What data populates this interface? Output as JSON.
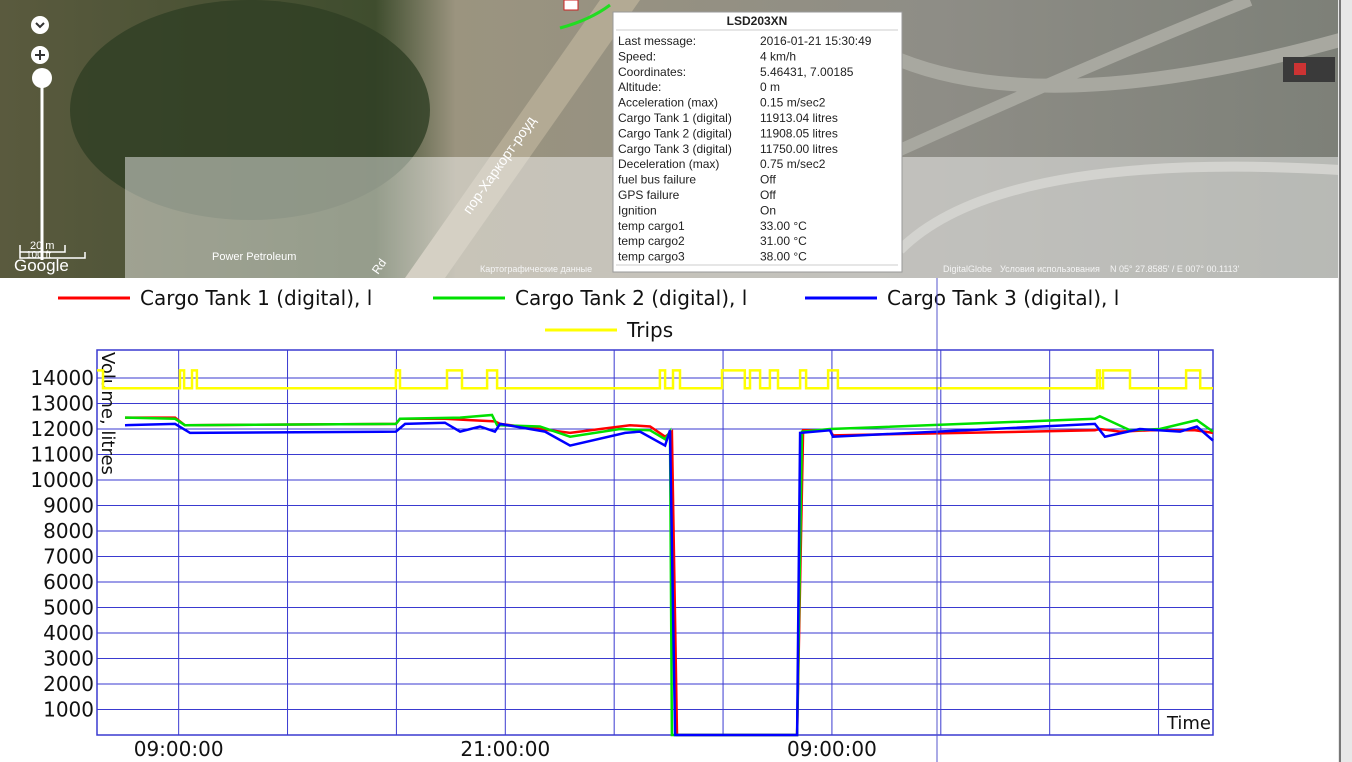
{
  "map": {
    "road": "пор-Харкорт-роуд",
    "poi": "Power Petroleum",
    "road2": "Rd",
    "scale_m": "20 m",
    "scale_ft": "100 ft",
    "logo": "Google",
    "attribution": "Картографические данные",
    "provider": "DigitalGlobe",
    "terms": "Условия использования",
    "coords": "N 05° 27.8585' / E 007° 00.1113'"
  },
  "popup": {
    "title": "LSD203XN",
    "rows": [
      [
        "Last message:",
        "2016-01-21 15:30:49"
      ],
      [
        "Speed:",
        "4 km/h"
      ],
      [
        "Coordinates:",
        "5.46431, 7.00185"
      ],
      [
        "Altitude:",
        "0 m"
      ],
      [
        "Acceleration (max)",
        "0.15 m/sec2"
      ],
      [
        "Cargo Tank 1 (digital)",
        "11913.04 litres"
      ],
      [
        "Cargo Tank 2 (digital)",
        "11908.05 litres"
      ],
      [
        "Cargo Tank 3 (digital)",
        "11750.00 litres"
      ],
      [
        "Deceleration (max)",
        "0.75 m/sec2"
      ],
      [
        "fuel bus failure",
        "Off"
      ],
      [
        "GPS failure",
        "Off"
      ],
      [
        "Ignition",
        "On"
      ],
      [
        "temp cargo1",
        "33.00 °C"
      ],
      [
        "temp cargo2",
        "31.00 °C"
      ],
      [
        "temp cargo3",
        "38.00 °C"
      ]
    ]
  },
  "chart_data": {
    "type": "line",
    "xlabel": "Time",
    "ylabel": "Volume, litres",
    "grid": true,
    "xlim": [
      6,
      47
    ],
    "xticks": [
      {
        "value": 9,
        "label": "09:00:00"
      },
      {
        "value": 21,
        "label": "21:00:00"
      },
      {
        "value": 33,
        "label": "09:00:00"
      }
    ],
    "xminorticks": [
      13,
      17,
      25,
      29,
      37,
      41,
      45
    ],
    "ylim": [
      0,
      15100
    ],
    "yticks": [
      1000,
      2000,
      3000,
      4000,
      5000,
      6000,
      7000,
      8000,
      9000,
      10000,
      11000,
      12000,
      13000,
      14000
    ],
    "series": [
      {
        "name": "Cargo Tank 1 (digital), l",
        "color": "#ff0000",
        "x": [
          7.03,
          8.87,
          9.23,
          16.98,
          17.13,
          18.78,
          19.7,
          20.62,
          20.81,
          23.38,
          25.58,
          26.32,
          26.87,
          27.12,
          27.31,
          31.72,
          31.94,
          32.93,
          33.04,
          42.66,
          42.84,
          43.58,
          44.68,
          46.34,
          47
        ],
        "values": [
          12450,
          12450,
          12150,
          12200,
          12400,
          12400,
          12350,
          12300,
          12200,
          11850,
          12150,
          12100,
          11700,
          11900,
          0,
          0,
          11950,
          11950,
          11750,
          11950,
          12000,
          11900,
          11950,
          11950,
          11850
        ]
      },
      {
        "name": "Cargo Tank 2 (digital), l",
        "color": "#00e000",
        "x": [
          7.03,
          8.87,
          9.23,
          16.98,
          17.13,
          19.34,
          20.51,
          20.7,
          22.27,
          23.38,
          25.21,
          26.32,
          26.87,
          27.05,
          27.12,
          31.72,
          31.9,
          32.93,
          42.66,
          42.84,
          43.95,
          45.05,
          46.41,
          47
        ],
        "values": [
          12450,
          12400,
          12150,
          12200,
          12400,
          12450,
          12550,
          12150,
          12100,
          11700,
          12000,
          11950,
          11600,
          11900,
          0,
          0,
          11900,
          12000,
          12400,
          12500,
          11950,
          12000,
          12350,
          11900
        ]
      },
      {
        "name": "Cargo Tank 3 (digital), l",
        "color": "#0000ff",
        "x": [
          7.03,
          8.87,
          9.42,
          16.98,
          17.32,
          18.78,
          19.34,
          20.07,
          20.62,
          20.81,
          22.46,
          23.38,
          25.4,
          25.95,
          26.87,
          27.05,
          27.24,
          31.72,
          31.83,
          32.93,
          33.04,
          42.66,
          43.03,
          44.31,
          45.79,
          46.41,
          47
        ],
        "values": [
          12150,
          12200,
          11850,
          11900,
          12200,
          12250,
          11900,
          12100,
          11900,
          12200,
          11900,
          11350,
          11850,
          11900,
          11350,
          11950,
          0,
          0,
          11850,
          11950,
          11700,
          12200,
          11700,
          12000,
          11900,
          12100,
          11550
        ]
      },
      {
        "name": "Trips",
        "color": "#ffff00",
        "x": [
          6,
          6.22,
          6.22,
          9.05,
          9.05,
          9.2,
          9.2,
          9.49,
          9.49,
          9.67,
          9.67,
          16.98,
          16.98,
          17.13,
          17.13,
          18.86,
          18.86,
          19.41,
          19.41,
          20.33,
          20.33,
          20.7,
          20.7,
          26.68,
          26.68,
          26.87,
          26.87,
          27.16,
          27.16,
          27.42,
          27.42,
          28.96,
          28.96,
          29.8,
          29.8,
          29.99,
          29.99,
          30.36,
          30.36,
          30.72,
          30.72,
          31.02,
          31.02,
          31.83,
          31.83,
          32.05,
          32.05,
          32.86,
          32.86,
          33.22,
          33.22,
          42.74,
          42.74,
          42.84,
          42.84,
          42.96,
          42.96,
          43.95,
          43.95,
          46.01,
          46.01,
          46.53,
          46.53,
          47
        ],
        "values": [
          14300,
          14300,
          13600,
          13600,
          14300,
          14300,
          13600,
          13600,
          14300,
          14300,
          13600,
          13600,
          14300,
          14300,
          13600,
          13600,
          14300,
          14300,
          13600,
          13600,
          14300,
          14300,
          13600,
          13600,
          14300,
          14300,
          13600,
          13600,
          14300,
          14300,
          13600,
          13600,
          14300,
          14300,
          13600,
          13600,
          14300,
          14300,
          13600,
          13600,
          14300,
          14300,
          13600,
          13600,
          14300,
          14300,
          13600,
          13600,
          14300,
          14300,
          13600,
          13600,
          14300,
          14300,
          13600,
          13600,
          14300,
          14300,
          13600,
          13600,
          14300,
          14300,
          13600,
          13600
        ]
      }
    ]
  }
}
